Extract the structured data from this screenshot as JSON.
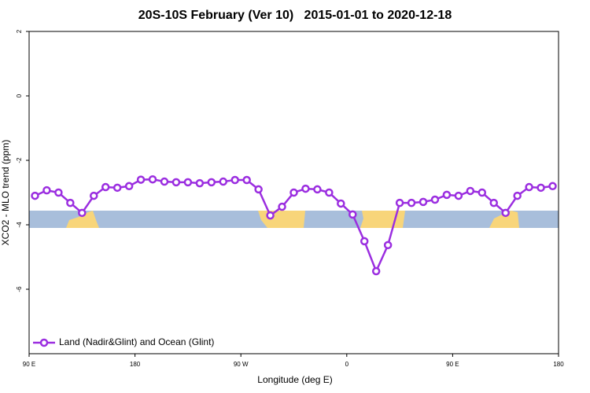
{
  "chart_data": {
    "type": "line",
    "title": "20S-10S February (Ver 10)   2015-01-01 to 2020-12-18",
    "x_label": "Longitude (deg E)",
    "y_label": "XCO2 - MLO trend (ppm)",
    "legend": "bottom-left",
    "x": [
      95,
      105,
      115,
      125,
      135,
      145,
      155,
      165,
      175,
      185,
      195,
      205,
      215,
      225,
      235,
      245,
      255,
      265,
      275,
      285,
      295,
      305,
      315,
      325,
      335,
      345,
      355,
      365,
      375,
      385,
      395,
      405,
      415,
      425,
      435,
      445,
      455,
      465,
      475,
      485,
      495,
      505,
      515,
      525,
      535
    ],
    "series": [
      {
        "name": "Land (Nadir&Glint) and Ocean (Glint)",
        "color": "#9b2ee0",
        "values": [
          -3.1,
          -2.93,
          -3.0,
          -3.32,
          -3.63,
          -3.1,
          -2.83,
          -2.85,
          -2.8,
          -2.6,
          -2.59,
          -2.66,
          -2.68,
          -2.68,
          -2.71,
          -2.68,
          -2.66,
          -2.61,
          -2.61,
          -2.9,
          -3.71,
          -3.44,
          -3.0,
          -2.88,
          -2.9,
          -3.0,
          -3.34,
          -3.68,
          -4.51,
          -5.44,
          -4.63,
          -3.32,
          -3.32,
          -3.29,
          -3.22,
          -3.07,
          -3.1,
          -2.95,
          -3.0,
          -3.32,
          -3.63,
          -3.1,
          -2.83,
          -2.85,
          -2.8
        ]
      }
    ],
    "xlim": [
      90,
      540
    ],
    "xticks": [
      {
        "value": 90,
        "label": "90 E"
      },
      180,
      {
        "value": 270,
        "label": "90 W"
      },
      {
        "value": 360,
        "label": "0"
      },
      {
        "value": 450,
        "label": "90 E"
      },
      {
        "value": 540,
        "label": "180"
      }
    ],
    "ylim": [
      -8,
      2
    ],
    "yticks": [
      -6,
      -4,
      -2,
      0,
      2
    ]
  }
}
